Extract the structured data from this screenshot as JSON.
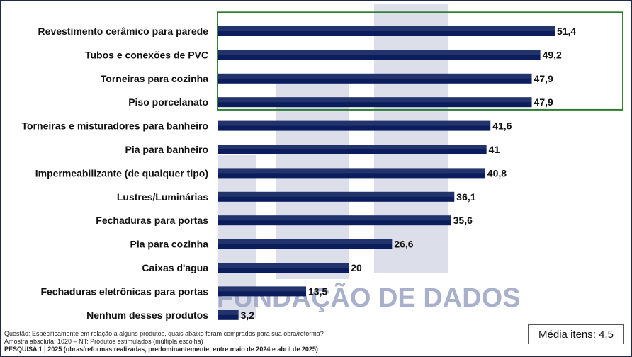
{
  "chart_data": {
    "type": "bar",
    "orientation": "horizontal",
    "categories": [
      "Revestimento cerâmico para parede",
      "Tubos e conexões de PVC",
      "Torneiras para cozinha",
      "Piso porcelanato",
      "Torneiras e misturadores para banheiro",
      "Pia para banheiro",
      "Impermeabilizante (de qualquer tipo)",
      "Lustres/Luminárias",
      "Fechaduras para portas",
      "Pia para cozinha",
      "Caixas d'agua",
      "Fechaduras eletrônicas para portas",
      "Nenhum desses produtos"
    ],
    "values": [
      51.4,
      49.2,
      47.9,
      47.9,
      41.6,
      41,
      40.8,
      36.1,
      35.6,
      26.6,
      20,
      13.5,
      3.2
    ],
    "value_labels": [
      "51,4",
      "49,2",
      "47,9",
      "47,9",
      "41,6",
      "41",
      "40,8",
      "36,1",
      "35,6",
      "26,6",
      "20",
      "13,5",
      "3,2"
    ],
    "highlighted_count": 4,
    "highlight_color": "#2e7d32",
    "bar_color": "#0b1d5c",
    "xlim": [
      0,
      55
    ],
    "grid": false,
    "legend": "none"
  },
  "watermark": {
    "text": "FUNDAÇÃO DE DADOS",
    "color": "#9aa3c4"
  },
  "footer": {
    "question": "Questão: Especificamente em relação a alguns produtos, quais abaixo foram comprados para sua obra/reforma?",
    "sample": "Amostra absoluta: 1020 – NT: Produtos estimulados (múltipla escolha)",
    "survey": "PESQUISA 1 | 2025 (obras/reformas realizadas, predominantemente, entre maio de 2024 e abril de 2025)"
  },
  "average": {
    "label": "Média itens: 4,5"
  }
}
